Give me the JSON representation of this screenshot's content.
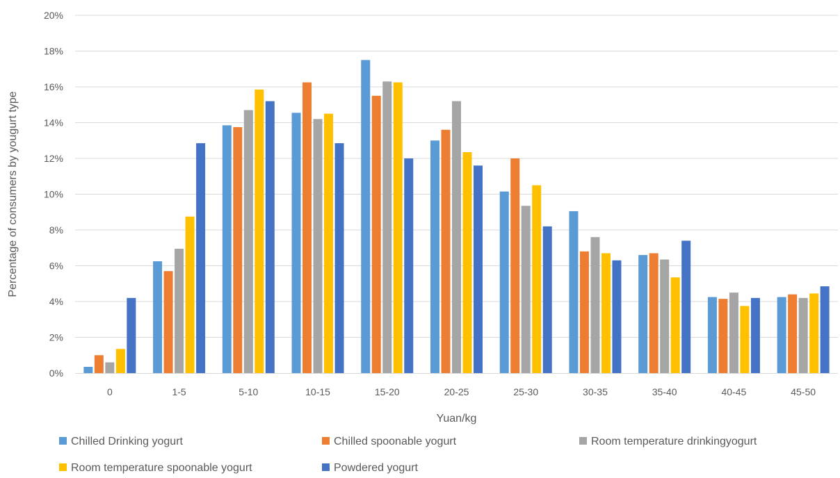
{
  "chart_data": {
    "type": "bar",
    "categories": [
      "0",
      "1-5",
      "5-10",
      "10-15",
      "15-20",
      "20-25",
      "25-30",
      "30-35",
      "35-40",
      "40-45",
      "45-50"
    ],
    "series": [
      {
        "name": "Chilled Drinking yogurt",
        "color": "#5B9BD5",
        "values": [
          0.35,
          6.25,
          13.85,
          14.55,
          17.5,
          13.0,
          10.15,
          9.05,
          6.6,
          4.25,
          4.25
        ]
      },
      {
        "name": "Chilled spoonable yogurt",
        "color": "#ED7D31",
        "values": [
          1.0,
          5.7,
          13.75,
          16.25,
          15.5,
          13.6,
          12.0,
          6.8,
          6.7,
          4.15,
          4.4
        ]
      },
      {
        "name": "Room temperature drinkingyogurt",
        "color": "#A5A5A5",
        "values": [
          0.6,
          6.95,
          14.7,
          14.2,
          16.3,
          15.2,
          9.35,
          7.6,
          6.35,
          4.5,
          4.2
        ]
      },
      {
        "name": "Room temperature spoonable yogurt",
        "color": "#FFC000",
        "values": [
          1.35,
          8.75,
          15.85,
          14.5,
          16.25,
          12.35,
          10.5,
          6.7,
          5.35,
          3.75,
          4.45
        ]
      },
      {
        "name": "Powdered yogurt",
        "color": "#4472C4",
        "values": [
          4.2,
          12.85,
          15.2,
          12.85,
          12.0,
          11.6,
          8.2,
          6.3,
          7.4,
          4.2,
          4.85
        ]
      }
    ],
    "yticks": [
      "0%",
      "2%",
      "4%",
      "6%",
      "8%",
      "10%",
      "12%",
      "14%",
      "16%",
      "18%",
      "20%"
    ],
    "title": "",
    "xlabel": "Yuan/kg",
    "ylabel": "Percentage of consumers by yougurt type",
    "ylim": [
      0,
      20
    ],
    "grid": true,
    "legend_position": "bottom"
  }
}
